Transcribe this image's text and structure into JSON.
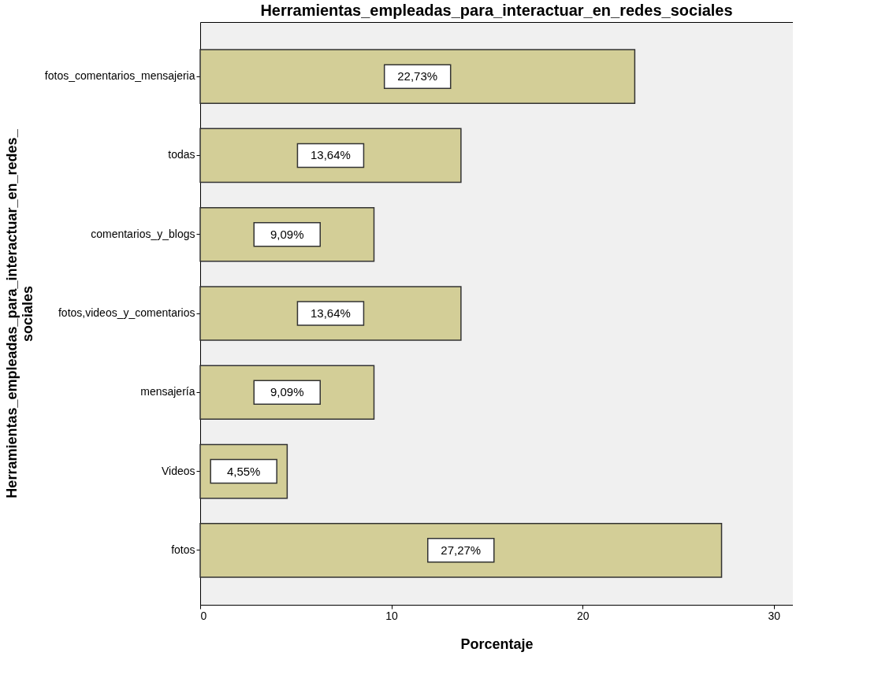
{
  "chart_data": {
    "type": "bar",
    "orientation": "horizontal",
    "title": "Herramientas_empleadas_para_interactuar_en_redes_sociales",
    "xlabel": "Porcentaje",
    "ylabel": "Herramientas_empleadas_para_interactuar_en_redes_sociales",
    "categories": [
      "fotos_comentarios_mensajeria",
      "todas",
      "comentarios_y_blogs",
      "fotos,videos_y_comentarios",
      "mensajería",
      "Videos",
      "fotos"
    ],
    "values": [
      22.73,
      13.64,
      9.09,
      13.64,
      9.09,
      4.55,
      27.27
    ],
    "value_labels": [
      "22,73%",
      "13,64%",
      "9,09%",
      "13,64%",
      "9,09%",
      "4,55%",
      "27,27%"
    ],
    "color": "#d3ce97",
    "xlim": [
      0,
      31
    ],
    "xticks": [
      0,
      10,
      20,
      30
    ],
    "grid": false
  }
}
